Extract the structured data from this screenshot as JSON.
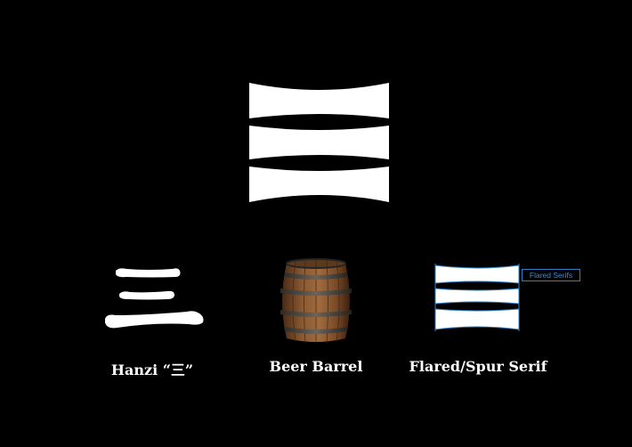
{
  "captions": {
    "hanzi": "Hanzi “三”",
    "barrel": "Beer Barrel",
    "spur": "Flared/Spur Serif"
  },
  "callout": {
    "label": "Flared Serifs"
  },
  "colors": {
    "background": "#000000",
    "foreground": "#ffffff",
    "annotation_blue": "#2e7ec6"
  },
  "icons": {
    "logo": "three-bar-flared-logo",
    "hanzi": "hanzi-san-character",
    "barrel": "wooden-beer-barrel",
    "spur": "flared-serif-diagram"
  }
}
